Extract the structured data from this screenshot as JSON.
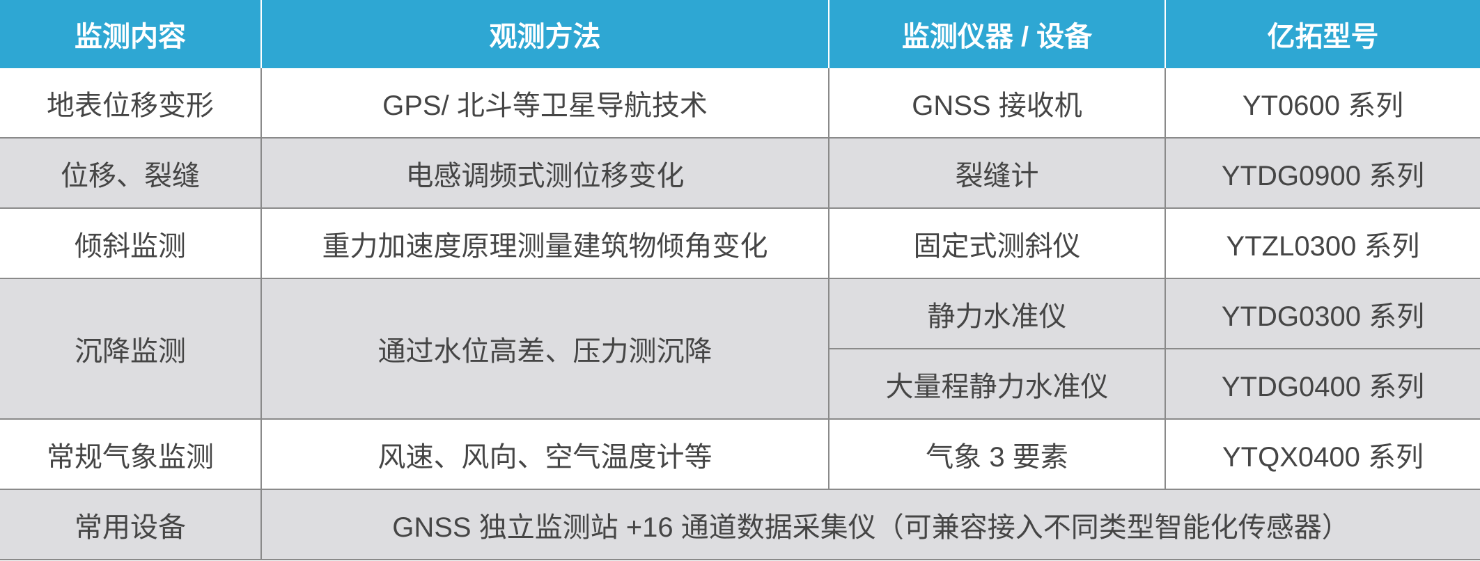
{
  "colors": {
    "header": "#2ea7d3",
    "row_alt": "#dddde0",
    "text": "#454545"
  },
  "headers": [
    "监测内容",
    "观测方法",
    "监测仪器 / 设备",
    "亿拓型号"
  ],
  "rows": [
    {
      "content": "地表位移变形",
      "method": "GPS/ 北斗等卫星导航技术",
      "device": "GNSS 接收机",
      "model": "YT0600 系列"
    },
    {
      "content": "位移、裂缝",
      "method": "电感调频式测位移变化",
      "device": "裂缝计",
      "model": "YTDG0900 系列"
    },
    {
      "content": "倾斜监测",
      "method": "重力加速度原理测量建筑物倾角变化",
      "device": "固定式测斜仪",
      "model": "YTZL0300 系列"
    },
    {
      "content": "沉降监测",
      "method": "通过水位高差、压力测沉降",
      "devices": [
        {
          "device": "静力水准仪",
          "model": "YTDG0300 系列"
        },
        {
          "device": "大量程静力水准仪",
          "model": "YTDG0400 系列"
        }
      ]
    },
    {
      "content": "常规气象监测",
      "method": "风速、风向、空气温度计等",
      "device": "气象 3 要素",
      "model": "YTQX0400 系列"
    }
  ],
  "common": {
    "label": "常用设备",
    "value": "GNSS 独立监测站 +16 通道数据采集仪（可兼容接入不同类型智能化传感器）"
  }
}
